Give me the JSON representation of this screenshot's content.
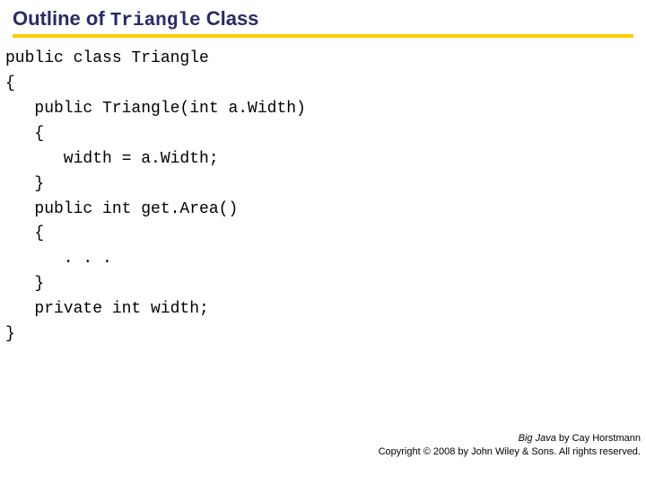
{
  "colors": {
    "title_text": "#2a2a66",
    "rule": "#ffcc00",
    "code_text": "#000000",
    "footer_text": "#000000",
    "background": "#ffffff"
  },
  "title": {
    "part1": "Outline of ",
    "mono": "Triangle",
    "part2": " Class",
    "fontsize_pt": 22
  },
  "code": {
    "fontsize_pt": 18,
    "lines": [
      "public class Triangle",
      "{",
      "   public Triangle(int a.Width)",
      "   {",
      "      width = a.Width;",
      "   }",
      "   public int get.Area()",
      "   {",
      "      . . .",
      "   }",
      "   private int width;",
      "}"
    ]
  },
  "footer": {
    "book_title": "Big Java",
    "author_line": " by Cay Horstmann",
    "copyright_line": "Copyright © 2008 by John Wiley & Sons. All rights reserved.",
    "fontsize_pt": 11
  }
}
